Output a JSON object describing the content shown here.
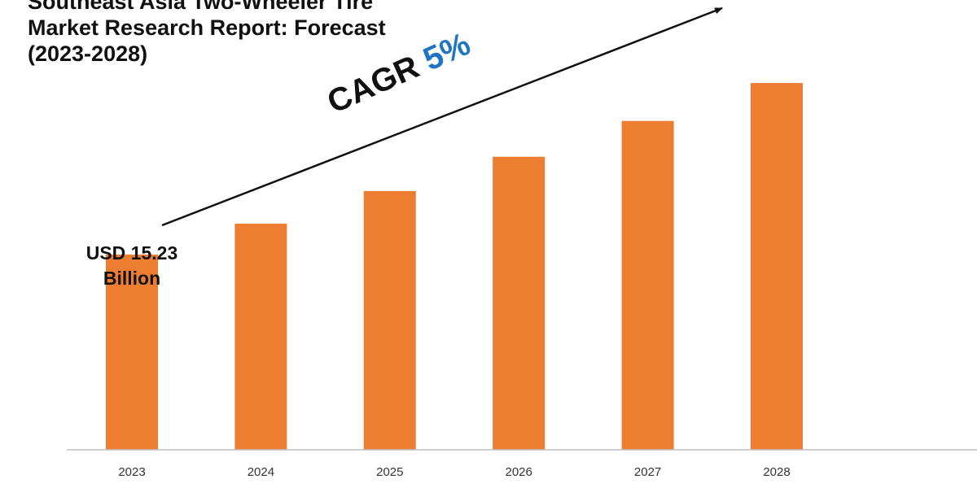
{
  "title_lines": [
    "Southeast Asia Two-Wheeler Tire",
    "Market Research Report: Forecast",
    "(2023-2028)"
  ],
  "annotations": {
    "start_value_lines": [
      "USD 15.23",
      "Billion"
    ],
    "cagr_label": "CAGR",
    "cagr_value": "5%"
  },
  "colors": {
    "bar": "#ED7D31",
    "cagr_value": "#1F74C4",
    "axis": "#BFBFBF"
  },
  "chart_data": {
    "type": "bar",
    "categories": [
      "2023",
      "2024",
      "2025",
      "2026",
      "2027",
      "2028"
    ],
    "values": [
      15.23,
      15.99,
      16.79,
      17.63,
      18.51,
      19.44
    ],
    "ylim": [
      10.44,
      20.2
    ],
    "grid": false,
    "legend": "none",
    "unit": "USD Billion"
  }
}
